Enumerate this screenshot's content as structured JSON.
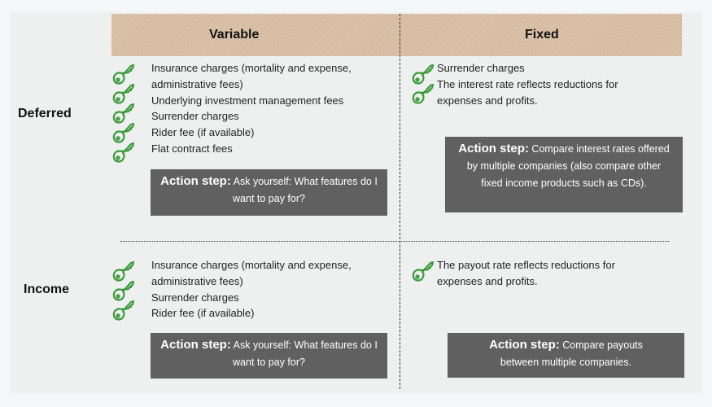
{
  "columns": {
    "variable": "Variable",
    "fixed": "Fixed"
  },
  "rows": {
    "deferred": "Deferred",
    "income": "Income"
  },
  "icon": "key-icon",
  "colors": {
    "key": "#3a9a3a",
    "action_box": "#606060",
    "header": "#dcc3ab"
  },
  "deferred_variable": {
    "items": [
      "Insurance charges (mortality and expense, administrative fees)",
      "Underlying investment management fees",
      "Surrender charges",
      "Rider fee (if available)",
      "Flat contract fees"
    ],
    "action_label": "Action step:",
    "action_text": "Ask yourself: What features do I want to pay for?"
  },
  "deferred_fixed": {
    "items": [
      "Surrender charges",
      "The interest rate reflects reductions for expenses and profits."
    ],
    "action_label": "Action step:",
    "action_text": "Compare interest rates offered by multiple companies (also compare other fixed income products such as CDs)."
  },
  "income_variable": {
    "items": [
      "Insurance charges (mortality and expense, administrative fees)",
      "Surrender charges",
      "Rider fee (if available)"
    ],
    "action_label": "Action step:",
    "action_text": "Ask yourself: What features do I want to pay for?"
  },
  "income_fixed": {
    "items": [
      "The payout rate reflects reductions for expenses and profits."
    ],
    "action_label": "Action step:",
    "action_text": "Compare payouts between multiple companies."
  }
}
